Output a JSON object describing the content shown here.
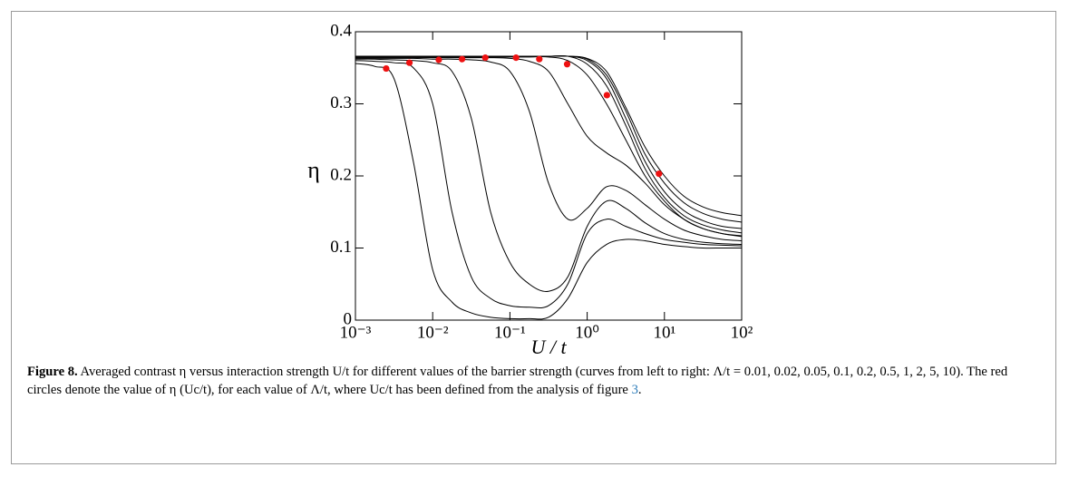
{
  "chart_data": {
    "type": "line",
    "log_x": true,
    "y_label": "η",
    "x_label": "U / t",
    "xlim": [
      0.001,
      100
    ],
    "ylim": [
      0,
      0.4
    ],
    "xticks": [
      {
        "value": 0.001,
        "label": "10⁻³"
      },
      {
        "value": 0.01,
        "label": "10⁻²"
      },
      {
        "value": 0.1,
        "label": "10⁻¹"
      },
      {
        "value": 1,
        "label": "10⁰"
      },
      {
        "value": 10,
        "label": "10¹"
      },
      {
        "value": 100,
        "label": "10²"
      }
    ],
    "yticks": [
      0,
      0.1,
      0.2,
      0.3,
      0.4
    ],
    "x": [
      0.001,
      0.00178,
      0.00316,
      0.00562,
      0.01,
      0.0178,
      0.0316,
      0.0562,
      0.1,
      0.178,
      0.316,
      0.562,
      1,
      1.78,
      3.16,
      5.62,
      10,
      17.8,
      31.6,
      56.2,
      100
    ],
    "series": [
      {
        "color": "#000000",
        "values": [
          0.356,
          0.352,
          0.335,
          0.22,
          0.07,
          0.025,
          0.01,
          0.004,
          0.002,
          0.002,
          0.004,
          0.03,
          0.08,
          0.105,
          0.112,
          0.11,
          0.105,
          0.102,
          0.1,
          0.1,
          0.1
        ]
      },
      {
        "color": "#000000",
        "values": [
          0.36,
          0.359,
          0.357,
          0.35,
          0.3,
          0.15,
          0.06,
          0.03,
          0.02,
          0.018,
          0.02,
          0.05,
          0.12,
          0.14,
          0.13,
          0.12,
          0.112,
          0.108,
          0.105,
          0.104,
          0.103
        ]
      },
      {
        "color": "#000000",
        "values": [
          0.362,
          0.362,
          0.361,
          0.36,
          0.357,
          0.345,
          0.28,
          0.15,
          0.08,
          0.05,
          0.04,
          0.06,
          0.13,
          0.165,
          0.155,
          0.135,
          0.12,
          0.112,
          0.108,
          0.106,
          0.105
        ]
      },
      {
        "color": "#000000",
        "values": [
          0.363,
          0.363,
          0.363,
          0.363,
          0.362,
          0.362,
          0.361,
          0.358,
          0.345,
          0.29,
          0.19,
          0.14,
          0.155,
          0.185,
          0.18,
          0.16,
          0.14,
          0.125,
          0.117,
          0.112,
          0.11
        ]
      },
      {
        "color": "#000000",
        "values": [
          0.364,
          0.364,
          0.364,
          0.364,
          0.364,
          0.364,
          0.364,
          0.364,
          0.363,
          0.359,
          0.345,
          0.3,
          0.255,
          0.232,
          0.215,
          0.19,
          0.16,
          0.14,
          0.127,
          0.12,
          0.116
        ]
      },
      {
        "color": "#000000",
        "values": [
          0.365,
          0.365,
          0.365,
          0.365,
          0.365,
          0.365,
          0.365,
          0.365,
          0.365,
          0.365,
          0.365,
          0.36,
          0.34,
          0.3,
          0.25,
          0.2,
          0.165,
          0.14,
          0.127,
          0.12,
          0.117
        ]
      },
      {
        "color": "#000000",
        "values": [
          0.366,
          0.366,
          0.366,
          0.366,
          0.366,
          0.366,
          0.366,
          0.366,
          0.366,
          0.366,
          0.366,
          0.366,
          0.355,
          0.325,
          0.27,
          0.21,
          0.17,
          0.145,
          0.132,
          0.125,
          0.121
        ]
      },
      {
        "color": "#000000",
        "values": [
          0.366,
          0.366,
          0.366,
          0.366,
          0.366,
          0.366,
          0.366,
          0.366,
          0.366,
          0.366,
          0.366,
          0.366,
          0.36,
          0.335,
          0.28,
          0.22,
          0.178,
          0.152,
          0.138,
          0.13,
          0.127
        ]
      },
      {
        "color": "#000000",
        "values": [
          0.366,
          0.366,
          0.366,
          0.366,
          0.366,
          0.366,
          0.366,
          0.366,
          0.366,
          0.366,
          0.366,
          0.366,
          0.362,
          0.34,
          0.29,
          0.23,
          0.19,
          0.163,
          0.148,
          0.14,
          0.136
        ]
      },
      {
        "color": "#000000",
        "values": [
          0.366,
          0.366,
          0.366,
          0.366,
          0.366,
          0.366,
          0.366,
          0.366,
          0.366,
          0.366,
          0.366,
          0.366,
          0.363,
          0.345,
          0.295,
          0.24,
          0.2,
          0.172,
          0.157,
          0.149,
          0.145
        ]
      }
    ],
    "points": {
      "color": "#ee1111",
      "x": [
        0.0025,
        0.005,
        0.012,
        0.024,
        0.048,
        0.12,
        0.24,
        0.55,
        1.8,
        8.5
      ],
      "values": [
        0.349,
        0.357,
        0.361,
        0.362,
        0.364,
        0.364,
        0.362,
        0.355,
        0.312,
        0.203
      ]
    }
  },
  "caption": {
    "label": "Figure 8.",
    "text": "Averaged contrast η versus interaction strength U/t for different values of the barrier strength (curves from left to right: Λ/t = 0.01, 0.02, 0.05, 0.1, 0.2, 0.5, 1, 2, 5, 10). The red circles denote the value of η (Uc/t), for each value of Λ/t, where Uc/t has been defined from the analysis of figure ",
    "ref": "3",
    "end": "."
  }
}
